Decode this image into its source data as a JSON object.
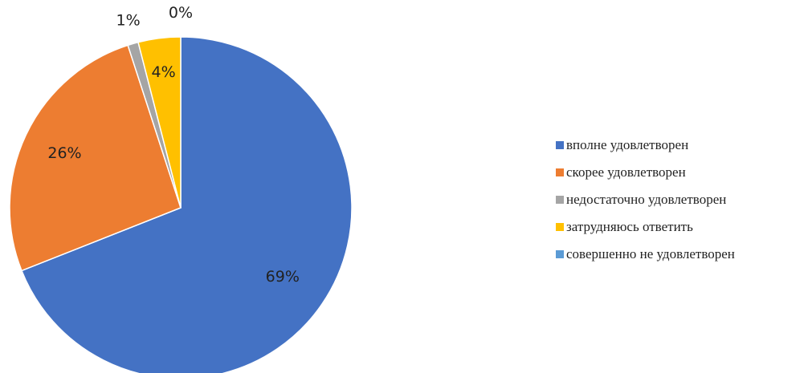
{
  "chart_data": {
    "type": "pie",
    "title": "",
    "categories": [
      "вполне удовлетворен",
      "скорее удовлетворен",
      "недостаточно удовлетворен",
      "затрудняюсь ответить",
      "совершенно не удовлетворен"
    ],
    "values": [
      69,
      26,
      1,
      4,
      0
    ],
    "data_labels": [
      "69%",
      "26%",
      "1%",
      "4%",
      "0%"
    ],
    "colors": [
      "#4472C4",
      "#ED7D31",
      "#A5A5A5",
      "#FFC000",
      "#5B9BD5"
    ],
    "start_angle": "12 o'clock",
    "direction": "clockwise",
    "legend_position": "right"
  }
}
